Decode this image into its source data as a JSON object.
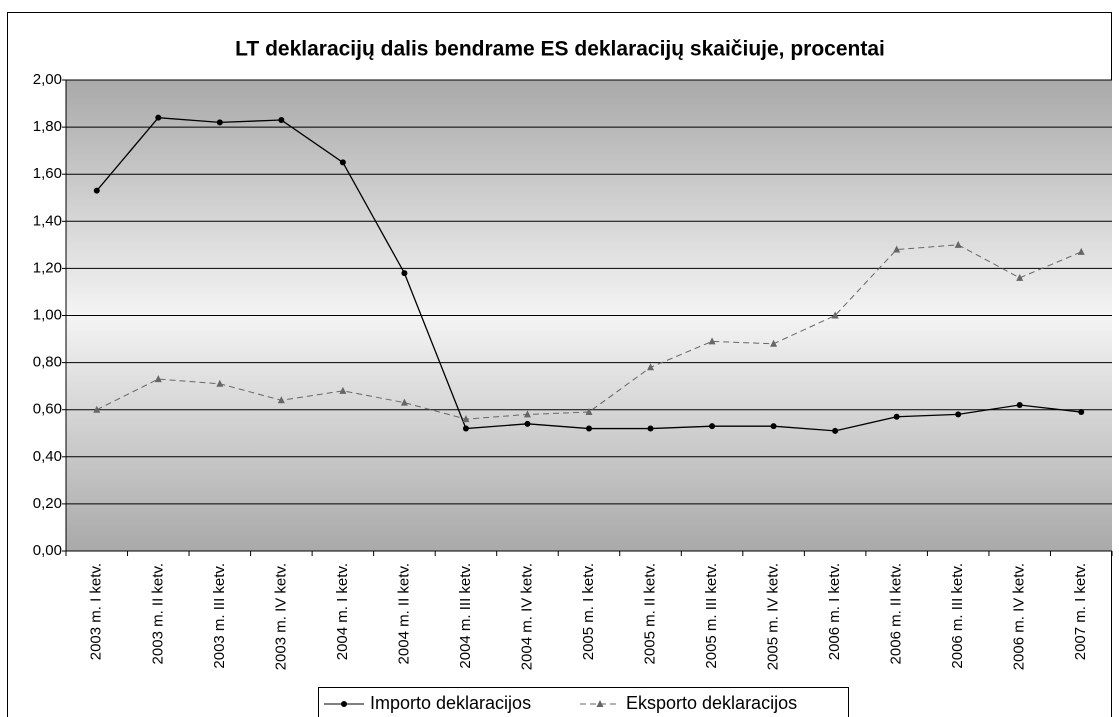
{
  "chart_data": {
    "type": "line",
    "title": "LT deklaracijų dalis bendrame ES deklaracijų skaičiuje, procentai",
    "categories": [
      "2003 m. I ketv.",
      "2003 m. II ketv.",
      "2003 m. III ketv.",
      "2003 m. IV ketv.",
      "2004 m. I ketv.",
      "2004 m. II ketv.",
      "2004 m. III ketv.",
      "2004 m. IV ketv.",
      "2005 m. I ketv.",
      "2005 m. II ketv.",
      "2005 m. III ketv.",
      "2005 m. IV ketv.",
      "2006 m. I ketv.",
      "2006 m. II ketv.",
      "2006 m. III ketv.",
      "2006 m. IV ketv.",
      "2007 m. I ketv."
    ],
    "series": [
      {
        "name": "Importo deklaracijos",
        "color": "#000000",
        "values": [
          1.53,
          1.84,
          1.82,
          1.83,
          1.65,
          1.18,
          0.52,
          0.54,
          0.52,
          0.52,
          0.53,
          0.53,
          0.51,
          0.57,
          0.58,
          0.62,
          0.59
        ]
      },
      {
        "name": "Eksporto deklaracijos",
        "color": "#666666",
        "values": [
          0.6,
          0.73,
          0.71,
          0.64,
          0.68,
          0.63,
          0.56,
          0.58,
          0.59,
          0.78,
          0.89,
          0.88,
          1.0,
          1.28,
          1.3,
          1.16,
          1.27
        ]
      }
    ],
    "ylim": [
      0,
      2
    ],
    "yticks": [
      {
        "value": 0,
        "label": "0,00"
      },
      {
        "value": 0.2,
        "label": "0,20"
      },
      {
        "value": 0.4,
        "label": "0,40"
      },
      {
        "value": 0.6,
        "label": "0,60"
      },
      {
        "value": 0.8,
        "label": "0,80"
      },
      {
        "value": 1,
        "label": "1,00"
      },
      {
        "value": 1.2,
        "label": "1,20"
      },
      {
        "value": 1.4,
        "label": "1,40"
      },
      {
        "value": 1.6,
        "label": "1,60"
      },
      {
        "value": 1.8,
        "label": "1,80"
      },
      {
        "value": 2,
        "label": "2,00"
      }
    ],
    "grid": true
  }
}
